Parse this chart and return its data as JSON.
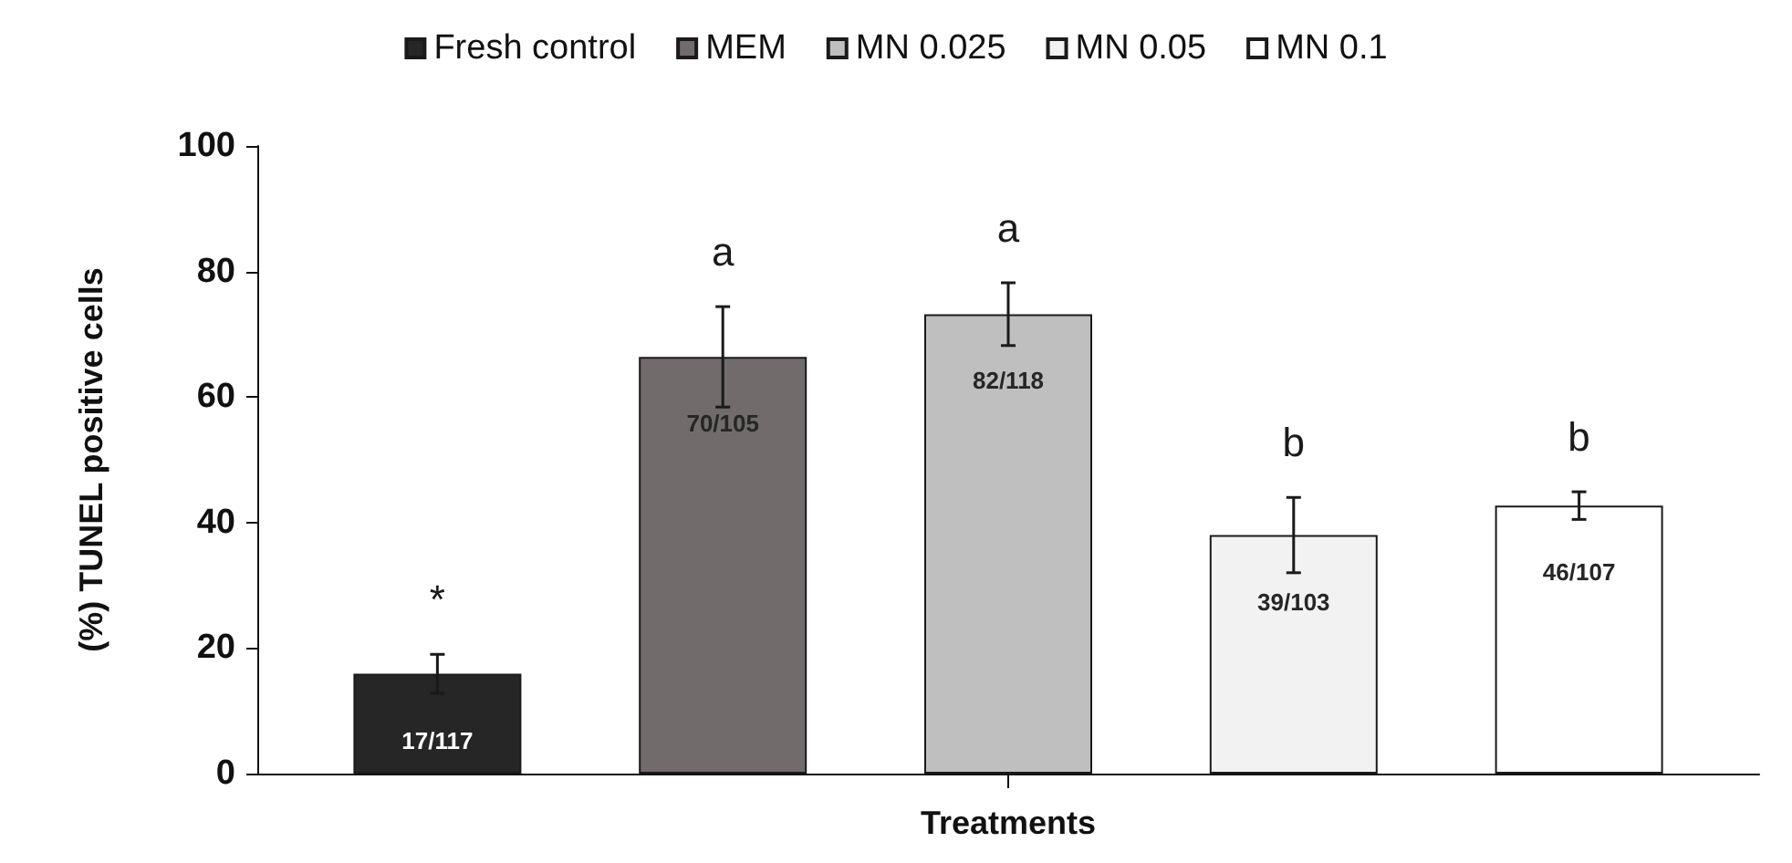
{
  "chart_data": {
    "type": "bar",
    "xlabel": "Treatments",
    "ylabel": "(%) TUNEL positive cells",
    "categories": [
      null
    ],
    "series": [
      {
        "name": "Fresh control",
        "color": "#262626",
        "values": [
          15.9
        ],
        "errors": [
          3.1
        ],
        "value_labels": [
          "17/117"
        ]
      },
      {
        "name": "MEM",
        "color": "#716c6b",
        "values": [
          66.4
        ],
        "errors": [
          8
        ],
        "value_labels": [
          "70/105"
        ]
      },
      {
        "name": "MN 0.025",
        "color": "#bfbfbf",
        "values": [
          73.2
        ],
        "errors": [
          5
        ],
        "value_labels": [
          "82/118"
        ]
      },
      {
        "name": "MN 0.05",
        "color": "#f2f2f2",
        "values": [
          38
        ],
        "errors": [
          6
        ],
        "value_labels": [
          "39/103"
        ]
      },
      {
        "name": "MN 0.1",
        "color": "#ffffff",
        "values": [
          42.7
        ],
        "errors": [
          2.2
        ],
        "value_labels": [
          "46/107"
        ]
      }
    ],
    "annotations": [
      "*",
      "a",
      "a",
      "b",
      "b"
    ],
    "ylim": [
      0,
      100
    ],
    "yticks": [
      0,
      20,
      40,
      60,
      80,
      100
    ],
    "grid": false,
    "legend": "top"
  }
}
